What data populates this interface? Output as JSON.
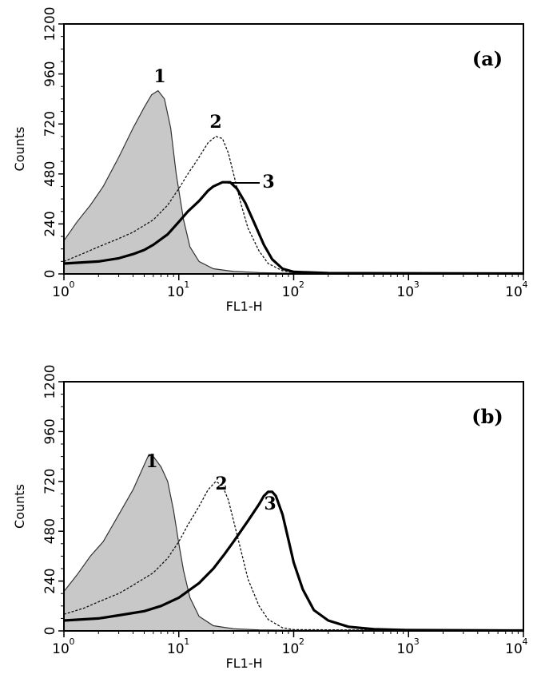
{
  "chart_data": [
    {
      "type": "line",
      "panel_label": "(a)",
      "xlabel": "FL1-H",
      "ylabel": "Counts",
      "x_scale": "log",
      "xlim": [
        1,
        10000
      ],
      "ylim": [
        0,
        1200
      ],
      "x_ticks": [
        {
          "base": "10",
          "exp": "0"
        },
        {
          "base": "10",
          "exp": "1"
        },
        {
          "base": "10",
          "exp": "2"
        },
        {
          "base": "10",
          "exp": "3"
        },
        {
          "base": "10",
          "exp": "4"
        }
      ],
      "y_ticks": [
        "0",
        "240",
        "480",
        "720",
        "960",
        "1200"
      ],
      "series": [
        {
          "name": "1",
          "style": "filled-gray",
          "x": [
            1,
            1.3,
            1.7,
            2.2,
            3,
            4,
            5,
            5.8,
            6.6,
            7.5,
            8.5,
            9.5,
            11,
            12.5,
            15,
            20,
            30,
            50,
            100,
            1000,
            10000
          ],
          "y": [
            160,
            250,
            330,
            420,
            560,
            700,
            800,
            860,
            880,
            840,
            700,
            480,
            260,
            130,
            60,
            25,
            12,
            6,
            3,
            2,
            2
          ]
        },
        {
          "name": "2",
          "style": "dashed",
          "x": [
            1,
            1.5,
            2,
            3,
            4,
            6,
            8,
            10,
            12,
            15,
            18,
            21,
            24,
            27,
            30,
            35,
            40,
            50,
            60,
            80,
            100,
            1000,
            10000
          ],
          "y": [
            60,
            100,
            130,
            170,
            200,
            260,
            330,
            410,
            480,
            560,
            630,
            660,
            650,
            580,
            480,
            330,
            220,
            110,
            50,
            15,
            6,
            3,
            2
          ]
        },
        {
          "name": "3",
          "style": "bold",
          "x": [
            1,
            2,
            3,
            4,
            5,
            6,
            8,
            10,
            12,
            15,
            18,
            20,
            24,
            28,
            32,
            38,
            45,
            55,
            65,
            80,
            100,
            200,
            1000,
            10000
          ],
          "y": [
            50,
            60,
            75,
            95,
            115,
            140,
            190,
            250,
            300,
            350,
            400,
            420,
            440,
            440,
            410,
            340,
            250,
            140,
            70,
            25,
            10,
            4,
            3,
            2
          ]
        }
      ],
      "annotations": [
        "1",
        "2",
        "3"
      ]
    },
    {
      "type": "line",
      "panel_label": "(b)",
      "xlabel": "FL1-H",
      "ylabel": "Counts",
      "x_scale": "log",
      "xlim": [
        1,
        10000
      ],
      "ylim": [
        0,
        1200
      ],
      "x_ticks": [
        {
          "base": "10",
          "exp": "0"
        },
        {
          "base": "10",
          "exp": "1"
        },
        {
          "base": "10",
          "exp": "2"
        },
        {
          "base": "10",
          "exp": "3"
        },
        {
          "base": "10",
          "exp": "4"
        }
      ],
      "y_ticks": [
        "0",
        "240",
        "480",
        "720",
        "960",
        "1200"
      ],
      "series": [
        {
          "name": "1",
          "style": "filled-gray",
          "x": [
            1,
            1.3,
            1.7,
            2.2,
            3,
            4,
            5,
            5.5,
            6,
            7,
            8,
            9,
            10,
            11,
            12.5,
            15,
            20,
            30,
            50,
            100,
            1000,
            10000
          ],
          "y": [
            190,
            270,
            360,
            430,
            560,
            680,
            800,
            850,
            840,
            790,
            720,
            580,
            420,
            290,
            160,
            70,
            25,
            10,
            5,
            3,
            2,
            2
          ]
        },
        {
          "name": "2",
          "style": "dashed",
          "x": [
            1,
            1.5,
            2,
            3,
            4,
            6,
            8,
            10,
            12,
            15,
            18,
            21,
            24,
            27,
            30,
            35,
            40,
            50,
            60,
            80,
            100,
            1000,
            10000
          ],
          "y": [
            80,
            110,
            140,
            180,
            220,
            280,
            350,
            430,
            510,
            600,
            680,
            720,
            700,
            630,
            530,
            380,
            250,
            120,
            55,
            15,
            6,
            3,
            2
          ]
        },
        {
          "name": "3",
          "style": "bold",
          "x": [
            1,
            2,
            3,
            5,
            7,
            10,
            15,
            20,
            25,
            30,
            40,
            50,
            55,
            60,
            65,
            70,
            80,
            90,
            100,
            120,
            150,
            200,
            300,
            500,
            1000,
            10000
          ],
          "y": [
            50,
            60,
            75,
            95,
            120,
            160,
            230,
            300,
            370,
            430,
            530,
            610,
            650,
            670,
            670,
            650,
            560,
            440,
            330,
            200,
            100,
            50,
            20,
            8,
            4,
            2
          ]
        }
      ],
      "annotations": [
        "1",
        "2",
        "3"
      ]
    }
  ]
}
